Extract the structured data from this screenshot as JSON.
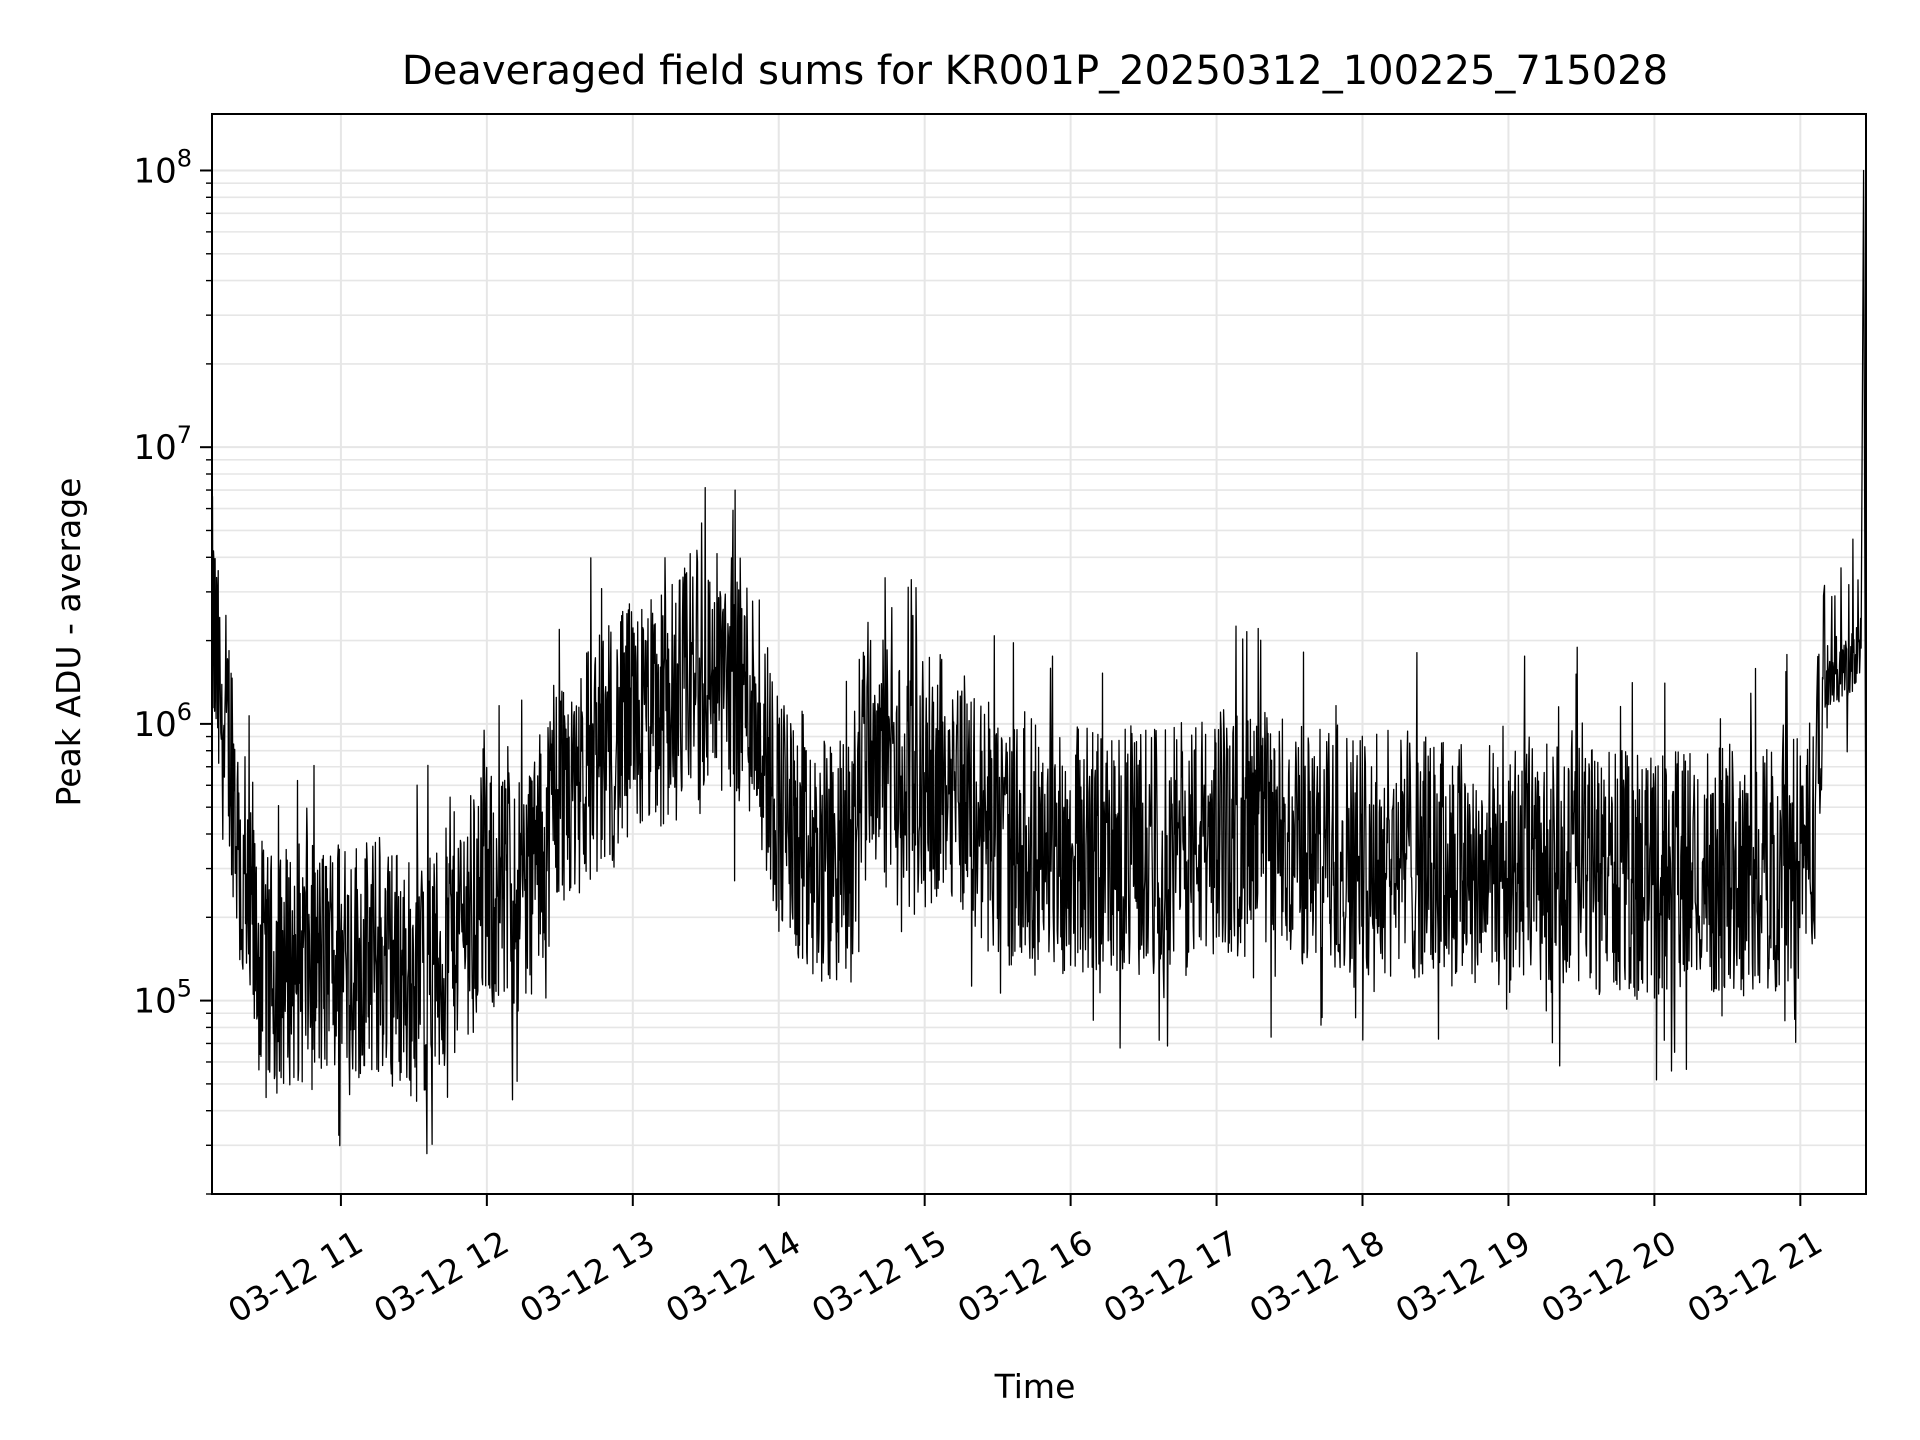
{
  "chart_data": {
    "type": "line",
    "title": "Deaveraged field sums for KR001P_20250312_100225_715028",
    "xlabel": "Time",
    "ylabel": "Peak ADU - average",
    "y_scale": "log",
    "ylim": [
      20000,
      160000000
    ],
    "xlim": [
      "2025-03-12 10:07",
      "2025-03-12 21:27"
    ],
    "grid": true,
    "legend": "none",
    "line_color": "#000000",
    "grid_color": "#e6e6e6",
    "x_ticks": [
      {
        "value": "2025-03-12 11:00",
        "label": "03-12 11"
      },
      {
        "value": "2025-03-12 12:00",
        "label": "03-12 12"
      },
      {
        "value": "2025-03-12 13:00",
        "label": "03-12 13"
      },
      {
        "value": "2025-03-12 14:00",
        "label": "03-12 14"
      },
      {
        "value": "2025-03-12 15:00",
        "label": "03-12 15"
      },
      {
        "value": "2025-03-12 16:00",
        "label": "03-12 16"
      },
      {
        "value": "2025-03-12 17:00",
        "label": "03-12 17"
      },
      {
        "value": "2025-03-12 18:00",
        "label": "03-12 18"
      },
      {
        "value": "2025-03-12 19:00",
        "label": "03-12 19"
      },
      {
        "value": "2025-03-12 20:00",
        "label": "03-12 20"
      },
      {
        "value": "2025-03-12 21:00",
        "label": "03-12 21"
      }
    ],
    "y_ticks": [
      {
        "value": 100000,
        "base": "10",
        "exp": "5"
      },
      {
        "value": 1000000,
        "base": "10",
        "exp": "6"
      },
      {
        "value": 10000000,
        "base": "10",
        "exp": "7"
      },
      {
        "value": 100000000,
        "base": "10",
        "exp": "8"
      }
    ],
    "series": [
      {
        "x": [
          "2025-03-12 10:07",
          "2025-03-12 10:10",
          "2025-03-12 10:15",
          "2025-03-12 10:20",
          "2025-03-12 10:30",
          "2025-03-12 10:40",
          "2025-03-12 10:50",
          "2025-03-12 11:00",
          "2025-03-12 11:10",
          "2025-03-12 11:20",
          "2025-03-12 11:30",
          "2025-03-12 11:40",
          "2025-03-12 11:50",
          "2025-03-12 12:00",
          "2025-03-12 12:10",
          "2025-03-12 12:20",
          "2025-03-12 12:30",
          "2025-03-12 12:40",
          "2025-03-12 12:50",
          "2025-03-12 13:00",
          "2025-03-12 13:10",
          "2025-03-12 13:20",
          "2025-03-12 13:30",
          "2025-03-12 13:40",
          "2025-03-12 13:50",
          "2025-03-12 14:00",
          "2025-03-12 14:10",
          "2025-03-12 14:20",
          "2025-03-12 14:30",
          "2025-03-12 14:35",
          "2025-03-12 14:40",
          "2025-03-12 14:50",
          "2025-03-12 15:00",
          "2025-03-12 15:10",
          "2025-03-12 15:20",
          "2025-03-12 15:30",
          "2025-03-12 15:40",
          "2025-03-12 15:50",
          "2025-03-12 16:00",
          "2025-03-12 16:20",
          "2025-03-12 16:40",
          "2025-03-12 17:00",
          "2025-03-12 17:20",
          "2025-03-12 17:40",
          "2025-03-12 18:00",
          "2025-03-12 18:30",
          "2025-03-12 19:00",
          "2025-03-12 19:30",
          "2025-03-12 20:00",
          "2025-03-12 20:30",
          "2025-03-12 20:50",
          "2025-03-12 21:05",
          "2025-03-12 21:10",
          "2025-03-12 21:15",
          "2025-03-12 21:20",
          "2025-03-12 21:25",
          "2025-03-12 21:26",
          "2025-03-12 21:27"
        ],
        "y": [
          2500000,
          1200000,
          800000,
          200000,
          120000,
          140000,
          130000,
          150000,
          140000,
          140000,
          120000,
          130000,
          200000,
          250000,
          230000,
          300000,
          600000,
          700000,
          800000,
          1000000,
          1100000,
          1300000,
          1500000,
          1600000,
          1200000,
          500000,
          300000,
          300000,
          350000,
          1000000,
          800000,
          600000,
          600000,
          700000,
          500000,
          350000,
          400000,
          350000,
          350000,
          350000,
          350000,
          400000,
          400000,
          350000,
          350000,
          320000,
          300000,
          300000,
          280000,
          300000,
          300000,
          350000,
          1500000,
          1600000,
          1500000,
          2000000,
          100000000,
          200000
        ]
      }
    ]
  }
}
